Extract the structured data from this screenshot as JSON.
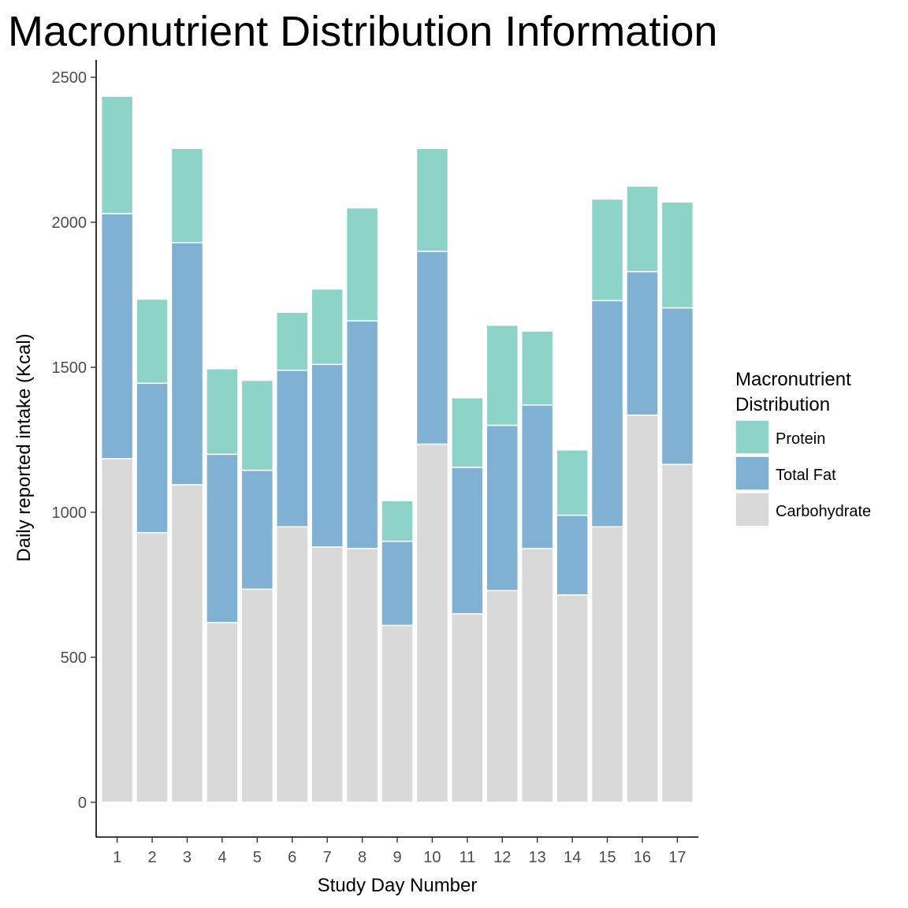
{
  "chart_data": {
    "type": "bar",
    "stacked": true,
    "title": "Macronutrient Distribution Information",
    "xlabel": "Study Day Number",
    "ylabel": "Daily reported intake (Kcal)",
    "categories": [
      "1",
      "2",
      "3",
      "4",
      "5",
      "6",
      "7",
      "8",
      "9",
      "10",
      "11",
      "12",
      "13",
      "14",
      "15",
      "16",
      "17"
    ],
    "ylim": [
      -120,
      2560
    ],
    "yticks": [
      0,
      500,
      1000,
      1500,
      2000,
      2500
    ],
    "grid": false,
    "legend": {
      "title_lines": [
        "Macronutrient",
        "Distribution"
      ],
      "placement": "right"
    },
    "series": [
      {
        "name": "Carbohydrate",
        "color": "#d9d9d9",
        "values": [
          1185,
          930,
          1095,
          620,
          735,
          950,
          880,
          875,
          610,
          1235,
          650,
          730,
          875,
          715,
          950,
          1335,
          1165
        ]
      },
      {
        "name": "Total Fat",
        "color": "#80b1d3",
        "values": [
          845,
          515,
          835,
          580,
          410,
          540,
          630,
          785,
          290,
          665,
          505,
          570,
          495,
          275,
          780,
          495,
          540
        ]
      },
      {
        "name": "Protein",
        "color": "#8dd3c7",
        "values": [
          405,
          290,
          325,
          295,
          310,
          200,
          260,
          390,
          140,
          355,
          240,
          345,
          255,
          225,
          350,
          295,
          365
        ]
      }
    ],
    "legend_order": [
      "Protein",
      "Total Fat",
      "Carbohydrate"
    ]
  }
}
